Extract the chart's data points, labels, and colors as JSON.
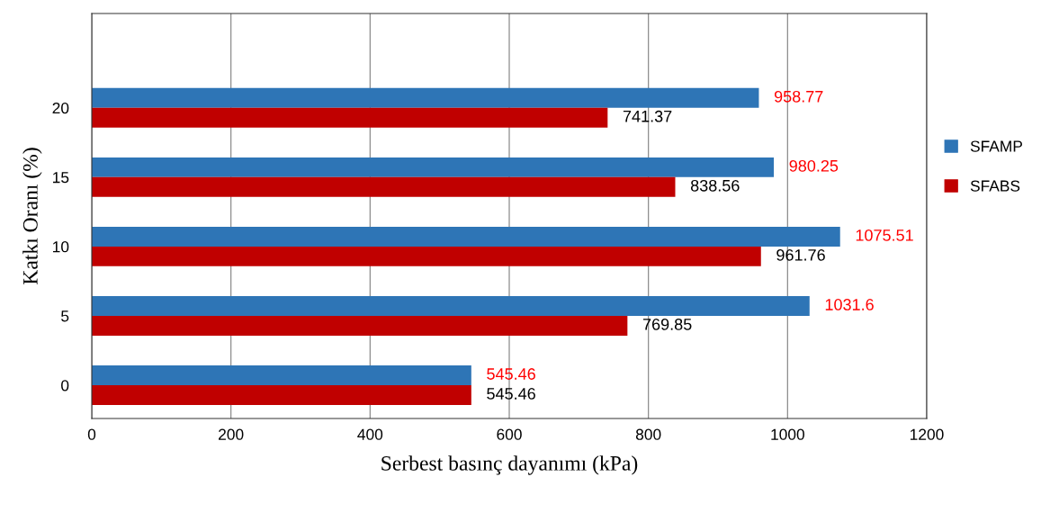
{
  "chart_data": {
    "type": "bar",
    "orientation": "horizontal",
    "categories": [
      "20",
      "15",
      "10",
      "5",
      "0"
    ],
    "series": [
      {
        "name": "SFAMP",
        "color": "#2e75b6",
        "values": [
          958.77,
          980.25,
          1075.51,
          1031.6,
          545.46
        ]
      },
      {
        "name": "SFABS",
        "color": "#c00000",
        "values": [
          741.37,
          838.56,
          961.76,
          769.85,
          545.46
        ]
      }
    ],
    "xlabel": "Serbest basınç dayanımı (kPa)",
    "ylabel": "Katkı Oranı (%)",
    "xlim": [
      0,
      1200
    ],
    "xticks": [
      0,
      200,
      400,
      600,
      800,
      1000,
      1200
    ],
    "grid": "x",
    "legend": "right",
    "data_labels": true
  }
}
